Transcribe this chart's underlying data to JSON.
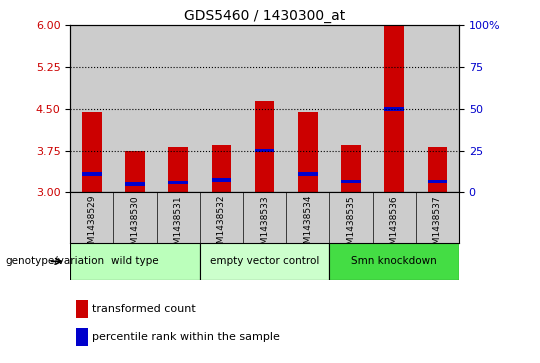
{
  "title": "GDS5460 / 1430300_at",
  "samples": [
    "GSM1438529",
    "GSM1438530",
    "GSM1438531",
    "GSM1438532",
    "GSM1438533",
    "GSM1438534",
    "GSM1438535",
    "GSM1438536",
    "GSM1438537"
  ],
  "red_values": [
    4.45,
    3.75,
    3.82,
    3.85,
    4.65,
    4.45,
    3.85,
    6.0,
    3.82
  ],
  "blue_values": [
    3.33,
    3.15,
    3.18,
    3.22,
    3.75,
    3.33,
    3.2,
    4.5,
    3.2
  ],
  "y_min": 3.0,
  "y_max": 6.0,
  "y_ticks_left": [
    3,
    3.75,
    4.5,
    5.25,
    6
  ],
  "y_ticks_right": [
    0,
    25,
    50,
    75,
    100
  ],
  "y_ticks_right_labels": [
    "0",
    "25",
    "50",
    "75",
    "100%"
  ],
  "dotted_lines": [
    3.75,
    4.5,
    5.25
  ],
  "bar_color": "#cc0000",
  "blue_color": "#0000cc",
  "bar_width": 0.45,
  "groups": [
    {
      "label": "wild type",
      "start": 0,
      "end": 3,
      "color": "#bbffbb"
    },
    {
      "label": "empty vector control",
      "start": 3,
      "end": 6,
      "color": "#ccffcc"
    },
    {
      "label": "Smn knockdown",
      "start": 6,
      "end": 9,
      "color": "#44dd44"
    }
  ],
  "group_row_label": "genotype/variation",
  "legend_red": "transformed count",
  "legend_blue": "percentile rank within the sample",
  "tick_label_color_left": "#cc0000",
  "tick_label_color_right": "#0000cc",
  "background_color": "#ffffff",
  "plot_bg_color": "#ffffff",
  "grey_col_bg": "#cccccc"
}
